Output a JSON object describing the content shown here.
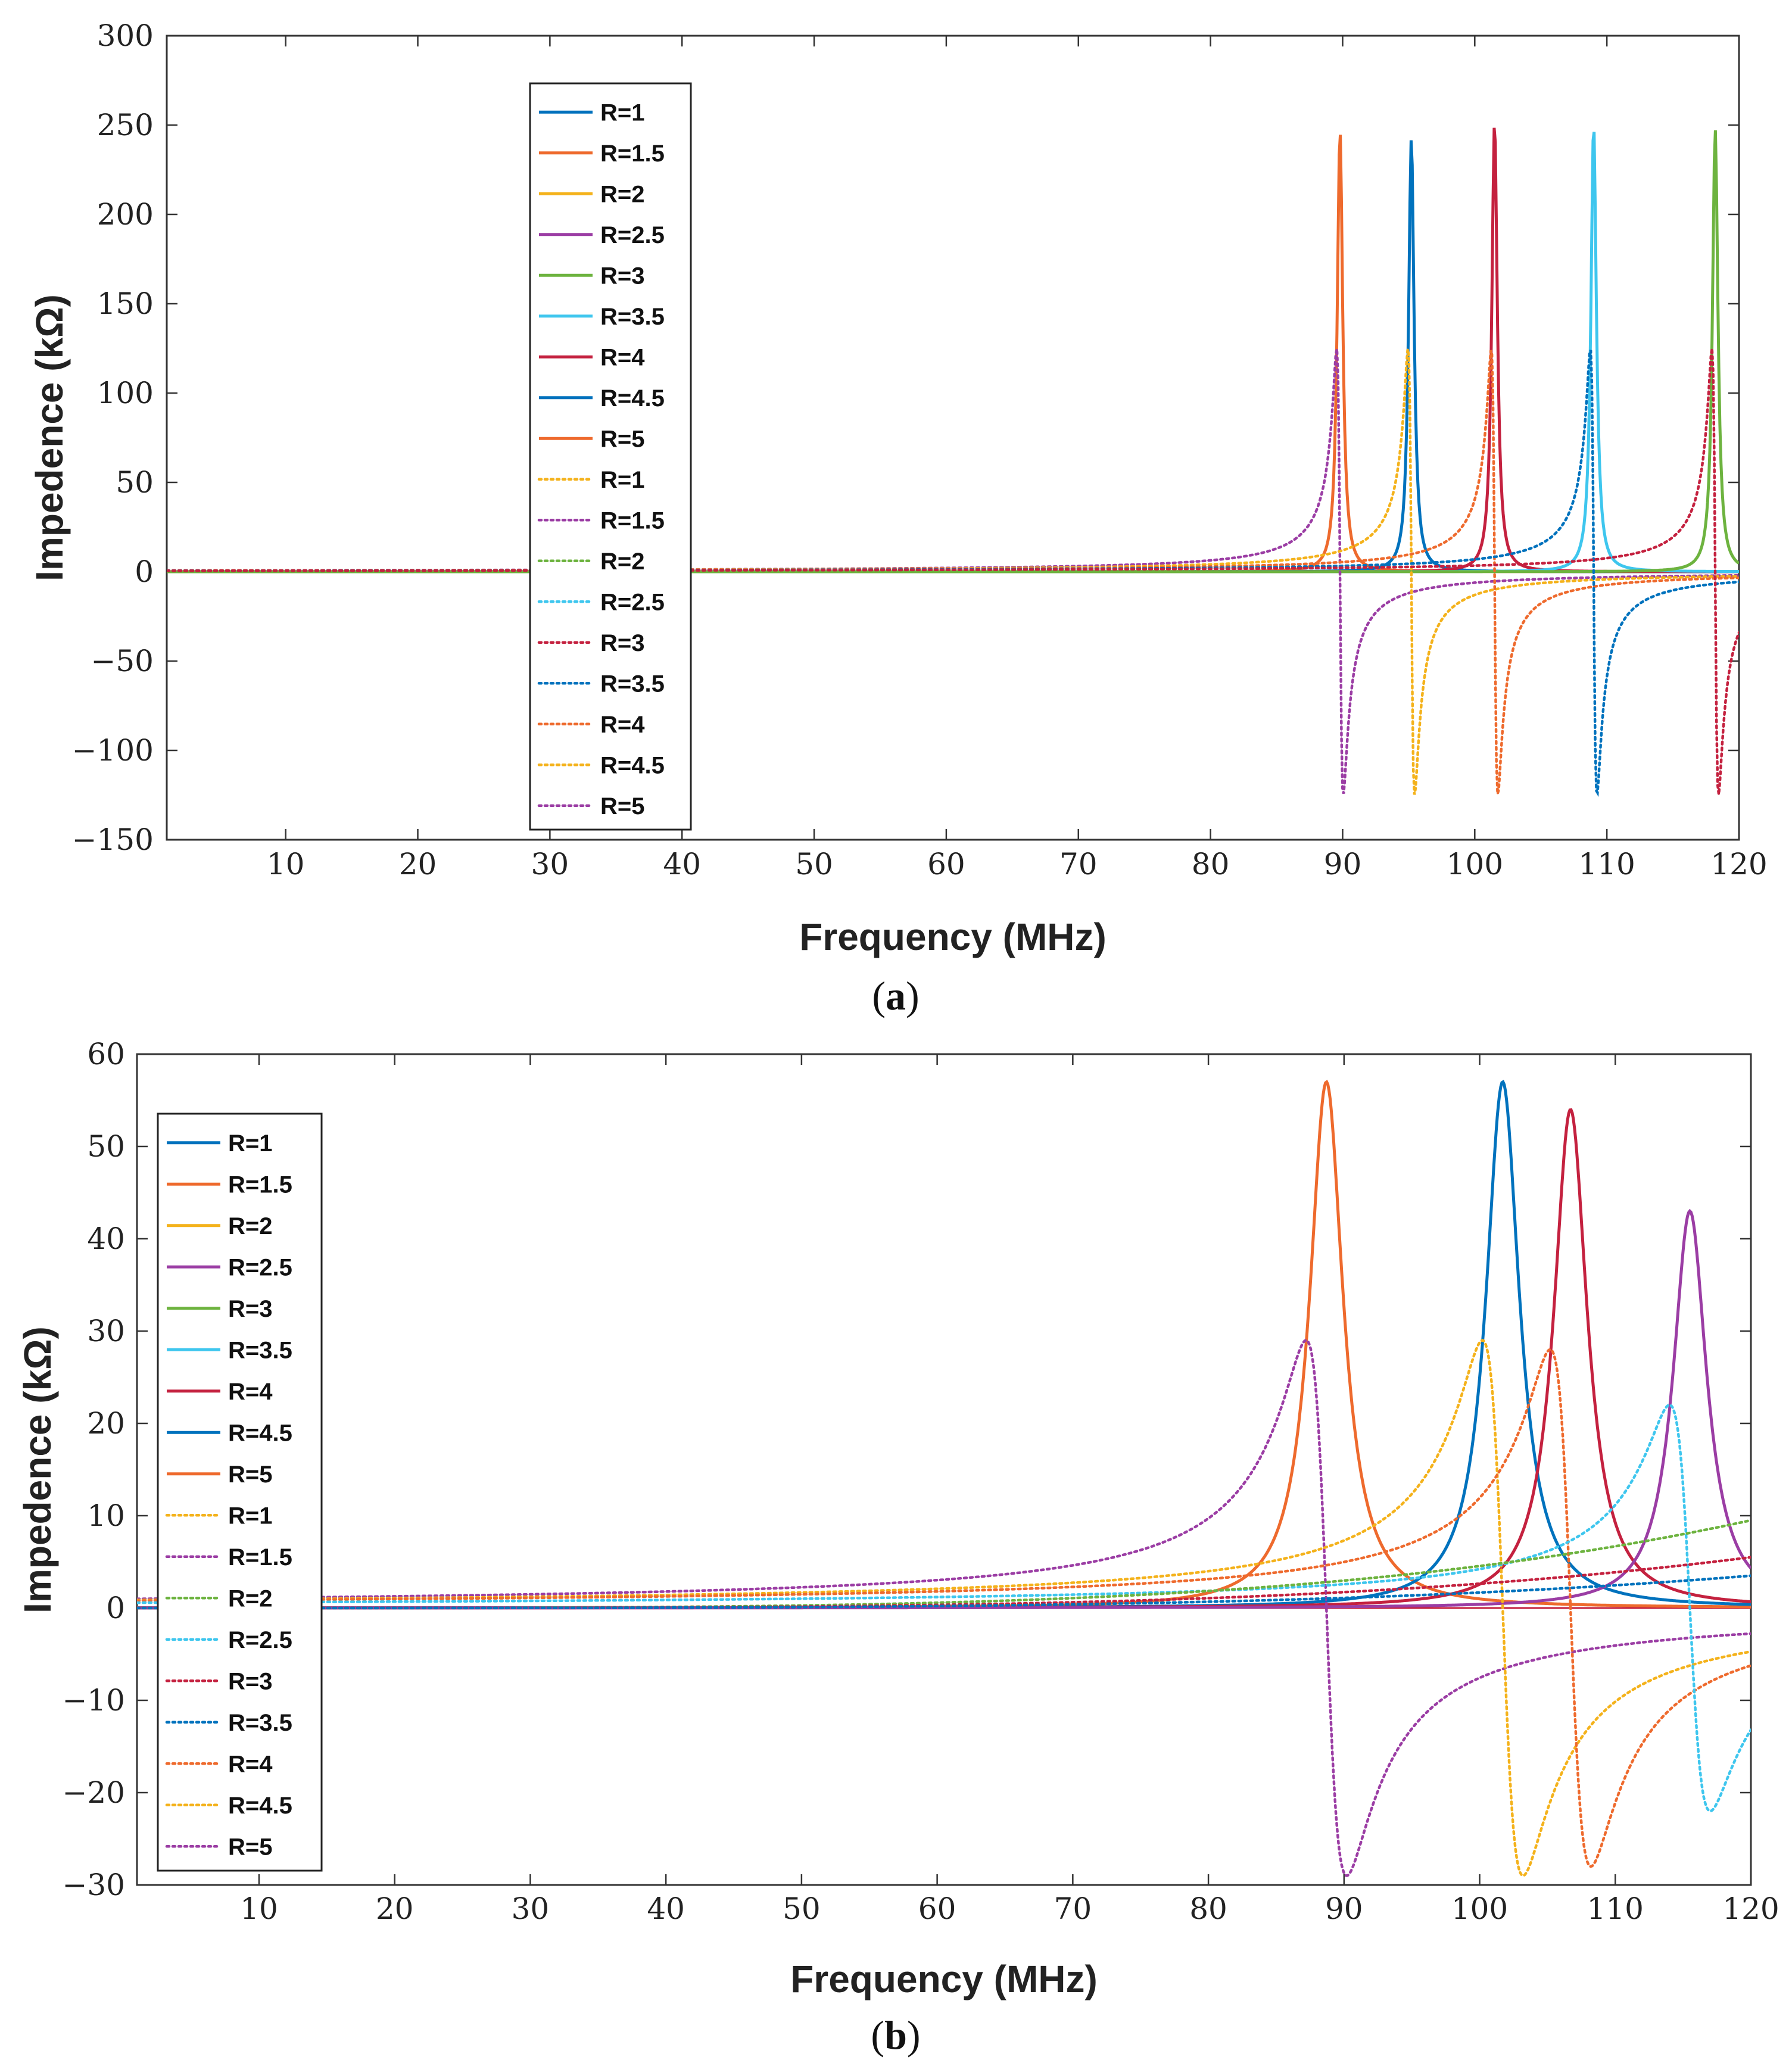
{
  "figure": {
    "colors": {
      "c1": "#0072BD",
      "c2": "#EE6A2D",
      "c3": "#F4B21B",
      "c4": "#9B3DA4",
      "c5": "#6DB33F",
      "c6": "#3EC6EE",
      "c7": "#C4213F"
    }
  },
  "chart_data": [
    {
      "id": "a",
      "type": "line",
      "caption_open": "(",
      "caption_letter": "a",
      "caption_close": ")",
      "xlabel": "Frequency (MHz)",
      "ylabel": "Impedence  (kΩ)",
      "xlim": [
        1,
        120
      ],
      "ylim": [
        -150,
        300
      ],
      "xticks": [
        10,
        20,
        30,
        40,
        50,
        60,
        70,
        80,
        90,
        100,
        110,
        120
      ],
      "yticks": [
        300,
        250,
        200,
        150,
        100,
        50,
        0,
        -50,
        -100,
        -150
      ],
      "ytick_labels": [
        "300",
        "250",
        "200",
        "150",
        "100",
        "50",
        "0",
        "−50",
        "−100",
        "−150"
      ],
      "legend_position": "upper-left-center",
      "legend": [
        {
          "label": "R=1",
          "style": "solid",
          "color": "#0072BD"
        },
        {
          "label": "R=1.5",
          "style": "solid",
          "color": "#EE6A2D"
        },
        {
          "label": "R=2",
          "style": "solid",
          "color": "#F4B21B"
        },
        {
          "label": "R=2.5",
          "style": "solid",
          "color": "#9B3DA4"
        },
        {
          "label": "R=3",
          "style": "solid",
          "color": "#6DB33F"
        },
        {
          "label": "R=3.5",
          "style": "solid",
          "color": "#3EC6EE"
        },
        {
          "label": "R=4",
          "style": "solid",
          "color": "#C4213F"
        },
        {
          "label": "R=4.5",
          "style": "solid",
          "color": "#0072BD"
        },
        {
          "label": "R=5",
          "style": "solid",
          "color": "#EE6A2D"
        },
        {
          "label": "R=1",
          "style": "dotted",
          "color": "#F4B21B"
        },
        {
          "label": "R=1.5",
          "style": "dotted",
          "color": "#9B3DA4"
        },
        {
          "label": "R=2",
          "style": "dotted",
          "color": "#6DB33F"
        },
        {
          "label": "R=2.5",
          "style": "dotted",
          "color": "#3EC6EE"
        },
        {
          "label": "R=3",
          "style": "dotted",
          "color": "#C4213F"
        },
        {
          "label": "R=3.5",
          "style": "dotted",
          "color": "#0072BD"
        },
        {
          "label": "R=4",
          "style": "dotted",
          "color": "#EE6A2D"
        },
        {
          "label": "R=4.5",
          "style": "dotted",
          "color": "#F4B21B"
        },
        {
          "label": "R=5",
          "style": "dotted",
          "color": "#9B3DA4"
        }
      ],
      "series": [
        {
          "kind": "real",
          "f0": 89.8,
          "peak": 247,
          "width": 0.25,
          "color": "#EE6A2D"
        },
        {
          "kind": "real",
          "f0": 95.2,
          "peak": 243,
          "width": 0.25,
          "color": "#0072BD"
        },
        {
          "kind": "real",
          "f0": 101.5,
          "peak": 252,
          "width": 0.25,
          "color": "#C4213F"
        },
        {
          "kind": "real",
          "f0": 109.0,
          "peak": 251,
          "width": 0.25,
          "color": "#3EC6EE"
        },
        {
          "kind": "real",
          "f0": 118.2,
          "peak": 248,
          "width": 0.25,
          "color": "#6DB33F"
        },
        {
          "kind": "imag",
          "f0": 89.8,
          "peak": 125,
          "width": 0.25,
          "color": "#9B3DA4"
        },
        {
          "kind": "imag",
          "f0": 95.2,
          "peak": 125,
          "width": 0.25,
          "color": "#F4B21B"
        },
        {
          "kind": "imag",
          "f0": 101.5,
          "peak": 125,
          "width": 0.25,
          "color": "#EE6A2D"
        },
        {
          "kind": "imag",
          "f0": 109.0,
          "peak": 125,
          "width": 0.25,
          "color": "#0072BD"
        },
        {
          "kind": "imag",
          "f0": 118.2,
          "peak": 125,
          "width": 0.25,
          "color": "#C4213F"
        }
      ]
    },
    {
      "id": "b",
      "type": "line",
      "caption_open": "(",
      "caption_letter": "b",
      "caption_close": ")",
      "xlabel": "Frequency (MHz)",
      "ylabel": "Impedence  (kΩ)",
      "xlim": [
        1,
        120
      ],
      "ylim": [
        -30,
        60
      ],
      "xticks": [
        10,
        20,
        30,
        40,
        50,
        60,
        70,
        80,
        90,
        100,
        110,
        120
      ],
      "yticks": [
        60,
        50,
        40,
        30,
        20,
        10,
        0,
        -10,
        -20,
        -30
      ],
      "ytick_labels": [
        "60",
        "50",
        "40",
        "30",
        "20",
        "10",
        "0",
        "−10",
        "−20",
        "−30"
      ],
      "legend_position": "upper-left",
      "legend": [
        {
          "label": "R=1",
          "style": "solid",
          "color": "#0072BD"
        },
        {
          "label": "R=1.5",
          "style": "solid",
          "color": "#EE6A2D"
        },
        {
          "label": "R=2",
          "style": "solid",
          "color": "#F4B21B"
        },
        {
          "label": "R=2.5",
          "style": "solid",
          "color": "#9B3DA4"
        },
        {
          "label": "R=3",
          "style": "solid",
          "color": "#6DB33F"
        },
        {
          "label": "R=3.5",
          "style": "solid",
          "color": "#3EC6EE"
        },
        {
          "label": "R=4",
          "style": "solid",
          "color": "#C4213F"
        },
        {
          "label": "R=4.5",
          "style": "solid",
          "color": "#0072BD"
        },
        {
          "label": "R=5",
          "style": "solid",
          "color": "#EE6A2D"
        },
        {
          "label": "R=1",
          "style": "dotted",
          "color": "#F4B21B"
        },
        {
          "label": "R=1.5",
          "style": "dotted",
          "color": "#9B3DA4"
        },
        {
          "label": "R=2",
          "style": "dotted",
          "color": "#6DB33F"
        },
        {
          "label": "R=2.5",
          "style": "dotted",
          "color": "#3EC6EE"
        },
        {
          "label": "R=3",
          "style": "dotted",
          "color": "#C4213F"
        },
        {
          "label": "R=3.5",
          "style": "dotted",
          "color": "#0072BD"
        },
        {
          "label": "R=4",
          "style": "dotted",
          "color": "#EE6A2D"
        },
        {
          "label": "R=4.5",
          "style": "dotted",
          "color": "#F4B21B"
        },
        {
          "label": "R=5",
          "style": "dotted",
          "color": "#9B3DA4"
        }
      ],
      "series": [
        {
          "kind": "real",
          "f0": 88.7,
          "peak": 57,
          "width": 1.5,
          "color": "#EE6A2D"
        },
        {
          "kind": "real",
          "f0": 101.7,
          "peak": 57,
          "width": 1.5,
          "color": "#0072BD"
        },
        {
          "kind": "real",
          "f0": 106.7,
          "peak": 54,
          "width": 1.5,
          "color": "#C4213F"
        },
        {
          "kind": "real",
          "f0": 115.5,
          "peak": 43,
          "width": 1.5,
          "color": "#9B3DA4"
        },
        {
          "kind": "imag",
          "f0": 88.7,
          "peak": 29,
          "width": 1.5,
          "color": "#9B3DA4"
        },
        {
          "kind": "imag",
          "f0": 101.7,
          "peak": 29,
          "width": 1.5,
          "color": "#F4B21B"
        },
        {
          "kind": "imag",
          "f0": 106.7,
          "peak": 28,
          "width": 1.5,
          "color": "#EE6A2D"
        },
        {
          "kind": "imag",
          "f0": 115.5,
          "peak": 22,
          "width": 1.5,
          "color": "#3EC6EE"
        },
        {
          "kind": "ramp",
          "a": 9.5,
          "color": "#6DB33F"
        },
        {
          "kind": "ramp",
          "a": 5.5,
          "color": "#C4213F"
        },
        {
          "kind": "ramp",
          "a": 3.5,
          "color": "#0072BD"
        }
      ]
    }
  ]
}
